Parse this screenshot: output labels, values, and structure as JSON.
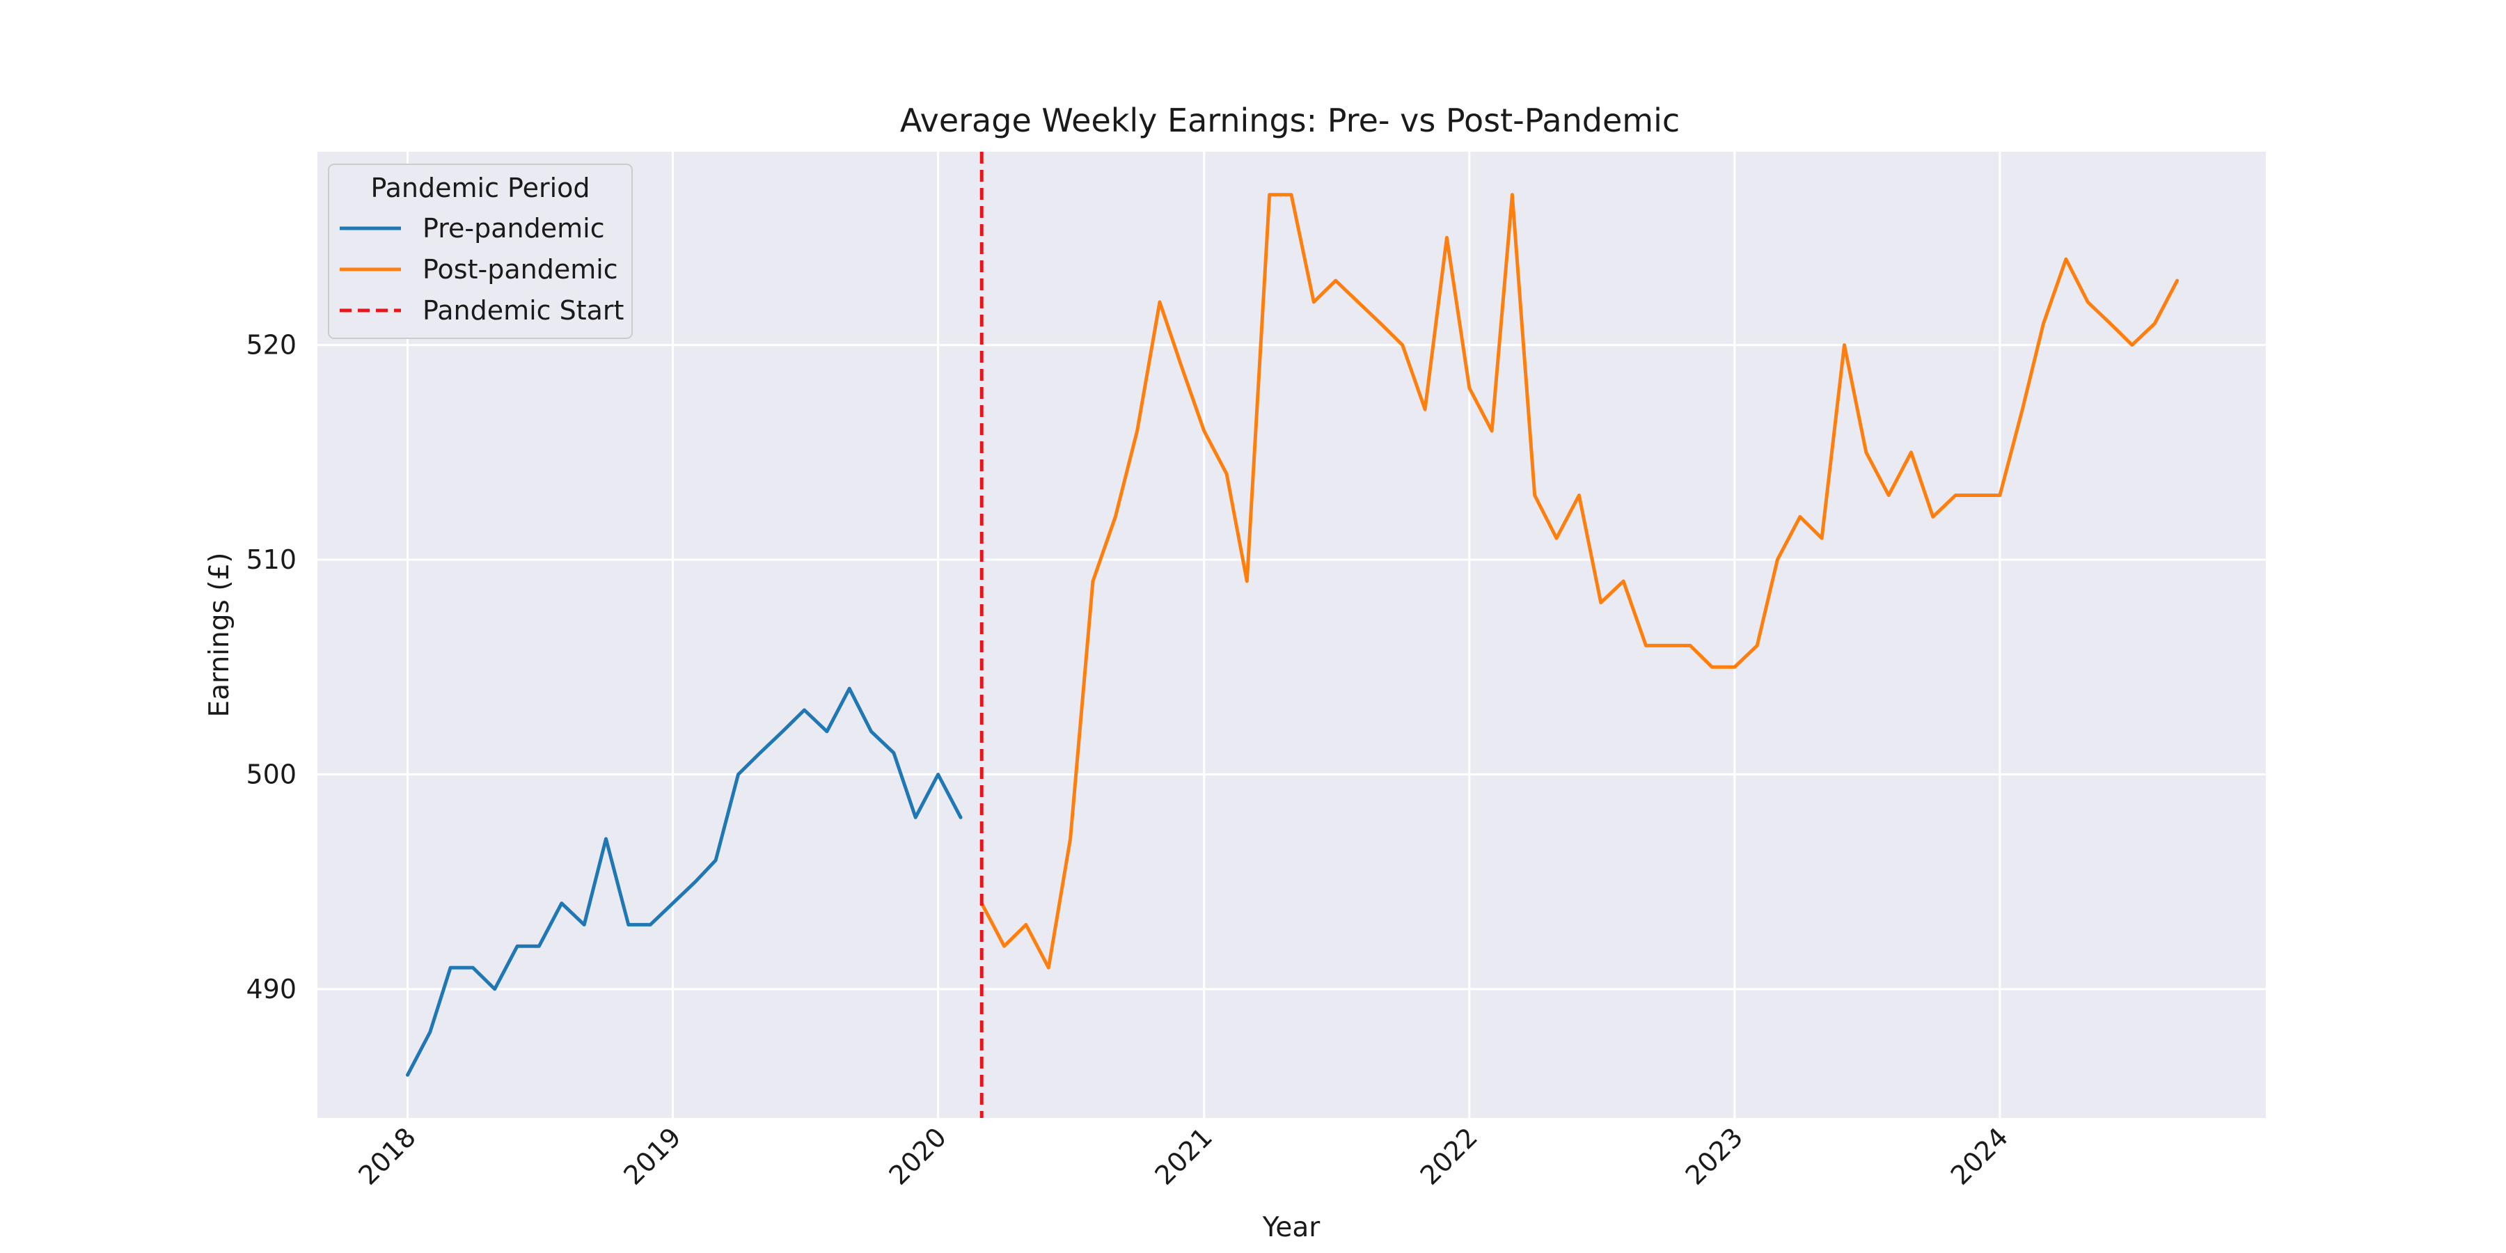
{
  "chart_data": {
    "type": "line",
    "title": "Average Weekly Earnings: Pre- vs Post-Pandemic",
    "xlabel": "Year",
    "ylabel": "Earnings (£)",
    "xlim": [
      "2017-08-30",
      "2025-01-01"
    ],
    "ylim": [
      484,
      529
    ],
    "xticks": [
      {
        "date": "2018-01-01",
        "label": "2018"
      },
      {
        "date": "2019-01-01",
        "label": "2019"
      },
      {
        "date": "2020-01-01",
        "label": "2020"
      },
      {
        "date": "2021-01-01",
        "label": "2021"
      },
      {
        "date": "2022-01-01",
        "label": "2022"
      },
      {
        "date": "2023-01-01",
        "label": "2023"
      },
      {
        "date": "2024-01-01",
        "label": "2024"
      }
    ],
    "yticks": [
      {
        "value": 490,
        "label": "490"
      },
      {
        "value": 500,
        "label": "500"
      },
      {
        "value": 510,
        "label": "510"
      },
      {
        "value": 520,
        "label": "520"
      }
    ],
    "grid": true,
    "legend": {
      "title": "Pandemic Period",
      "placement": "top-left",
      "entries": [
        {
          "label": "Pre-pandemic",
          "color": "#1f77b4",
          "style": "solid"
        },
        {
          "label": "Post-pandemic",
          "color": "#ff7f0e",
          "style": "solid"
        },
        {
          "label": "Pandemic Start",
          "color": "#e8161b",
          "style": "dashed"
        }
      ]
    },
    "series": [
      {
        "name": "Pre-pandemic",
        "color": "#1f77b4",
        "x": [
          "2018-01",
          "2018-02",
          "2018-03",
          "2018-04",
          "2018-05",
          "2018-06",
          "2018-07",
          "2018-08",
          "2018-09",
          "2018-10",
          "2018-11",
          "2018-12",
          "2019-01",
          "2019-02",
          "2019-03",
          "2019-04",
          "2019-05",
          "2019-06",
          "2019-07",
          "2019-08",
          "2019-09",
          "2019-10",
          "2019-11",
          "2019-12",
          "2020-01",
          "2020-02"
        ],
        "values": [
          486,
          488,
          491,
          491,
          490,
          492,
          492,
          494,
          493,
          497,
          493,
          493,
          494,
          495,
          496,
          500,
          501,
          502,
          503,
          502,
          504,
          502,
          501,
          498,
          500,
          498
        ]
      },
      {
        "name": "Post-pandemic",
        "color": "#ff7f0e",
        "x": [
          "2020-03",
          "2020-04",
          "2020-05",
          "2020-06",
          "2020-07",
          "2020-08",
          "2020-09",
          "2020-10",
          "2020-11",
          "2020-12",
          "2021-01",
          "2021-02",
          "2021-03",
          "2021-04",
          "2021-05",
          "2021-06",
          "2021-07",
          "2021-08",
          "2021-09",
          "2021-10",
          "2021-11",
          "2021-12",
          "2022-01",
          "2022-02",
          "2022-03",
          "2022-04",
          "2022-05",
          "2022-06",
          "2022-07",
          "2022-08",
          "2022-09",
          "2022-10",
          "2022-11",
          "2022-12",
          "2023-01",
          "2023-02",
          "2023-03",
          "2023-04",
          "2023-05",
          "2023-06",
          "2023-07",
          "2023-08",
          "2023-09",
          "2023-10",
          "2023-11",
          "2023-12",
          "2024-01",
          "2024-02",
          "2024-03",
          "2024-04",
          "2024-05",
          "2024-06",
          "2024-07",
          "2024-08",
          "2024-09"
        ],
        "values": [
          494,
          492,
          493,
          491,
          497,
          509,
          512,
          516,
          522,
          519,
          516,
          514,
          509,
          527,
          527,
          522,
          523,
          522,
          521,
          520,
          517,
          525,
          518,
          516,
          527,
          513,
          511,
          513,
          508,
          509,
          506,
          506,
          506,
          505,
          505,
          506,
          510,
          512,
          511,
          520,
          515,
          513,
          515,
          512,
          513,
          513,
          513,
          517,
          521,
          524,
          522,
          521,
          520,
          521,
          523
        ]
      }
    ],
    "annotations": [
      {
        "type": "vline",
        "date": "2020-03-01",
        "label": "Pandemic Start",
        "color": "#e8161b",
        "style": "dashed"
      }
    ]
  }
}
